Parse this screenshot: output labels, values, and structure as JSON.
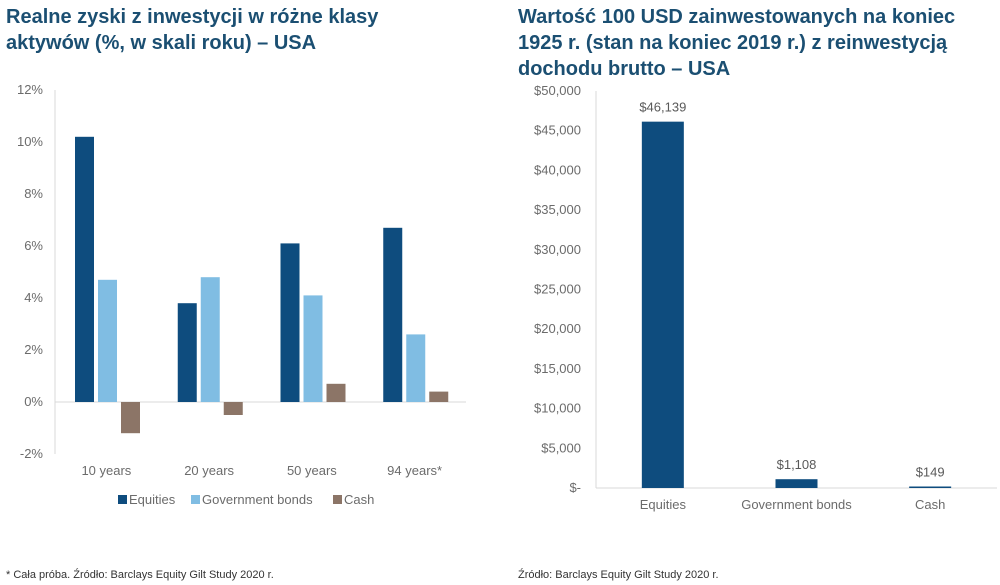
{
  "colors": {
    "equities": "#0e4c7e",
    "government_bonds": "#80bde3",
    "cash": "#8c7567",
    "axis": "#d9d9d9",
    "title": "#1b4f72"
  },
  "chart_data": [
    {
      "type": "bar",
      "title": "Realne zyski z inwestycji w różne klasy aktywów (%, w skali roku) – USA",
      "categories": [
        "10 years",
        "20 years",
        "50 years",
        "94 years*"
      ],
      "series": [
        {
          "name": "Equities",
          "values": [
            10.2,
            3.8,
            6.1,
            6.7
          ]
        },
        {
          "name": "Government bonds",
          "values": [
            4.7,
            4.8,
            4.1,
            2.6
          ]
        },
        {
          "name": "Cash",
          "values": [
            -1.2,
            -0.5,
            0.7,
            0.4
          ]
        }
      ],
      "ylim": [
        -2,
        12
      ],
      "yticks": [
        12,
        10,
        8,
        6,
        4,
        2,
        0,
        -2
      ],
      "ytick_labels": [
        "12%",
        "10%",
        "8%",
        "6%",
        "4%",
        "2%",
        "0%",
        "-2%"
      ],
      "legend_position": "bottom",
      "grid": false,
      "footnote": "* Cała próba. Źródło: Barclays Equity Gilt Study 2020 r."
    },
    {
      "type": "bar",
      "title": "Wartość 100 USD zainwestowanych na koniec 1925 r. (stan na koniec 2019 r.) z reinwestycją dochodu brutto – USA",
      "categories": [
        "Equities",
        "Government bonds",
        "Cash"
      ],
      "values": [
        46139,
        1108,
        149
      ],
      "data_labels": [
        "$46,139",
        "$1,108",
        "$149"
      ],
      "ylim": [
        0,
        50000
      ],
      "yticks": [
        50000,
        45000,
        40000,
        35000,
        30000,
        25000,
        20000,
        15000,
        10000,
        5000,
        0
      ],
      "ytick_labels": [
        "$50,000",
        "$45,000",
        "$40,000",
        "$35,000",
        "$30,000",
        "$25,000",
        "$20,000",
        "$15,000",
        "$10,000",
        "$5,000",
        "$-"
      ],
      "grid": false,
      "footnote": "Źródło: Barclays Equity Gilt Study 2020 r."
    }
  ]
}
